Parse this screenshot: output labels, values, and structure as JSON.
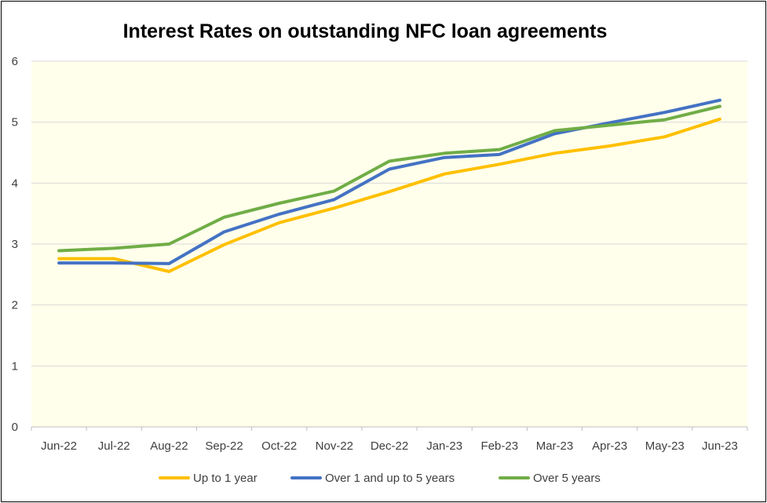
{
  "chart_data": {
    "type": "line",
    "title": "Interest Rates on outstanding NFC loan agreements",
    "xlabel": "",
    "ylabel": "",
    "categories": [
      "Jun-22",
      "Jul-22",
      "Aug-22",
      "Sep-22",
      "Oct-22",
      "Nov-22",
      "Dec-22",
      "Jan-23",
      "Feb-23",
      "Mar-23",
      "Apr-23",
      "May-23",
      "Jun-23"
    ],
    "ylim": [
      0,
      6
    ],
    "yticks": [
      "0",
      "1",
      "2",
      "3",
      "4",
      "5",
      "6"
    ],
    "grid": true,
    "plot_background": "#FFFFEB",
    "legend_position": "bottom",
    "series": [
      {
        "name": "Up to 1 year",
        "color": "#FFC000",
        "values": [
          2.76,
          2.76,
          2.55,
          2.99,
          3.35,
          3.59,
          3.86,
          4.15,
          4.31,
          4.49,
          4.61,
          4.76,
          5.05
        ]
      },
      {
        "name": "Over 1 and up to 5 years",
        "color": "#4472C4",
        "values": [
          2.69,
          2.69,
          2.68,
          3.2,
          3.49,
          3.73,
          4.23,
          4.42,
          4.47,
          4.81,
          4.99,
          5.16,
          5.36
        ]
      },
      {
        "name": "Over 5 years",
        "color": "#70AD47",
        "values": [
          2.89,
          2.93,
          3.0,
          3.44,
          3.67,
          3.87,
          4.36,
          4.49,
          4.55,
          4.86,
          4.95,
          5.04,
          5.26
        ]
      }
    ]
  }
}
